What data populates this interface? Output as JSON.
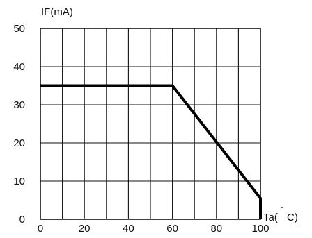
{
  "chart_data": {
    "type": "line",
    "ylabel": "IF(mA)",
    "xlabel_prefix": "Ta(",
    "xlabel_degree": "°",
    "xlabel_unit": "C)",
    "xlim": [
      0,
      100
    ],
    "ylim": [
      0,
      50
    ],
    "x_ticks": [
      0,
      20,
      40,
      60,
      80,
      100
    ],
    "y_ticks": [
      0,
      10,
      20,
      30,
      40,
      50
    ],
    "x_tick_labels": [
      "0",
      "20",
      "40",
      "60",
      "80",
      "100"
    ],
    "y_tick_labels": [
      "0",
      "10",
      "20",
      "30",
      "40",
      "50"
    ],
    "grid": true,
    "grid_x_step": 10,
    "grid_y_step": 10,
    "series": [
      {
        "x": [
          0,
          60,
          100,
          100
        ],
        "y": [
          35,
          35,
          5.5,
          0
        ]
      }
    ]
  }
}
